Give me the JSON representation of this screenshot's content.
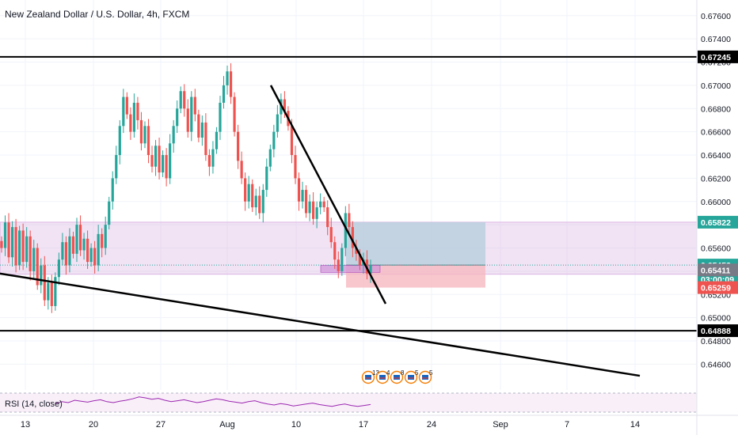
{
  "symbol_title": "New Zealand Dollar / U.S. Dollar, 4h, FXCM",
  "rsi_label": "RSI (14, close)",
  "colors": {
    "up": "#26a69a",
    "down": "#ef5350",
    "grid": "#f0f3fa",
    "axis_text": "#131722",
    "zone_fill": "#e1bee7",
    "tp_fill": "#b3cedc",
    "sl_fill": "#f6b9c1",
    "rsi_line": "#9c27b0",
    "price_line": "#26a69a"
  },
  "chart_data": {
    "type": "candlestick",
    "symbol": "NZDUSD",
    "timeframe": "4h",
    "source": "FXCM",
    "ylim": [
      0.6448,
      0.6768
    ],
    "y_ticks": [
      "0.67600",
      "0.67400",
      "0.67200",
      "0.67000",
      "0.66800",
      "0.66600",
      "0.66400",
      "0.66200",
      "0.66000",
      "0.65800",
      "0.65600",
      "0.65400",
      "0.65200",
      "0.65000",
      "0.64800",
      "0.64600"
    ],
    "x_ticks": [
      "13",
      "20",
      "27",
      "Aug",
      "10",
      "17",
      "24",
      "Sep",
      "7",
      "14"
    ],
    "price_labels": [
      {
        "value": 0.67245,
        "text": "0.67245",
        "style": "black-line"
      },
      {
        "value": 0.65822,
        "text": "0.65822",
        "style": "teal"
      },
      {
        "value": 0.65453,
        "text": "0.65453",
        "style": "teal"
      },
      {
        "text": "03:00:09",
        "style": "teal-timer"
      },
      {
        "value": 0.65411,
        "text": "0.65411",
        "style": "gray"
      },
      {
        "value": 0.65259,
        "text": "0.65259",
        "style": "red"
      },
      {
        "value": 0.64888,
        "text": "0.64888",
        "style": "black-line"
      }
    ],
    "horizontal_lines": [
      0.67245,
      0.64888
    ],
    "zones": [
      {
        "from": 0.65373,
        "to": 0.65822,
        "role": "range-zone"
      }
    ],
    "position": {
      "entry": 0.65453,
      "take_profit": 0.65822,
      "stop_loss": 0.65259
    },
    "price_series": [
      0.656,
      0.6582,
      0.6552,
      0.6578,
      0.6545,
      0.6575,
      0.6548,
      0.657,
      0.654,
      0.656,
      0.6528,
      0.6545,
      0.6515,
      0.653,
      0.651,
      0.6535,
      0.655,
      0.6565,
      0.6545,
      0.657,
      0.6555,
      0.658,
      0.6558,
      0.6568,
      0.6548,
      0.656,
      0.6545,
      0.6572,
      0.656,
      0.658,
      0.66,
      0.662,
      0.664,
      0.6665,
      0.669,
      0.6675,
      0.666,
      0.6685,
      0.667,
      0.665,
      0.6665,
      0.664,
      0.663,
      0.6648,
      0.6625,
      0.664,
      0.662,
      0.665,
      0.6665,
      0.668,
      0.6695,
      0.668,
      0.666,
      0.669,
      0.6675,
      0.6655,
      0.6668,
      0.664,
      0.663,
      0.6645,
      0.666,
      0.6685,
      0.67,
      0.6712,
      0.669,
      0.666,
      0.6635,
      0.662,
      0.66,
      0.6615,
      0.6595,
      0.6605,
      0.659,
      0.661,
      0.663,
      0.6645,
      0.666,
      0.6675,
      0.6688,
      0.6678,
      0.6665,
      0.664,
      0.662,
      0.66,
      0.661,
      0.659,
      0.66,
      0.6585,
      0.6595,
      0.66,
      0.6595,
      0.6578,
      0.6565,
      0.655,
      0.654,
      0.656,
      0.659,
      0.6578,
      0.656,
      0.6555,
      0.6545,
      0.655,
      0.6538,
      0.6545
    ],
    "trend_lines": [
      {
        "from": {
          "x": "Aug 8",
          "y": 0.67
        },
        "to": {
          "x": "Aug 18",
          "y": 0.6512
        }
      },
      {
        "from": {
          "x": "Jul 8",
          "y": 0.6538
        },
        "to": {
          "x": "Sep 15",
          "y": 0.645
        }
      }
    ],
    "event_markers": [
      {
        "count": "13"
      },
      {
        "count": "4"
      },
      {
        "count": "8"
      },
      {
        "count": "5"
      },
      {
        "count": "5"
      }
    ],
    "rsi": {
      "upper": 70,
      "lower": 30,
      "values": [
        48,
        52,
        50,
        55,
        53,
        51,
        54,
        56,
        52,
        50,
        53,
        55,
        58,
        62,
        60,
        57,
        59,
        55,
        52,
        54,
        56,
        53,
        50,
        52,
        55,
        58,
        56,
        53,
        51,
        49,
        52,
        54,
        50,
        47,
        45,
        48,
        46,
        43,
        45,
        47,
        49,
        46,
        44,
        42,
        45,
        47,
        44,
        42,
        44,
        46
      ]
    }
  }
}
